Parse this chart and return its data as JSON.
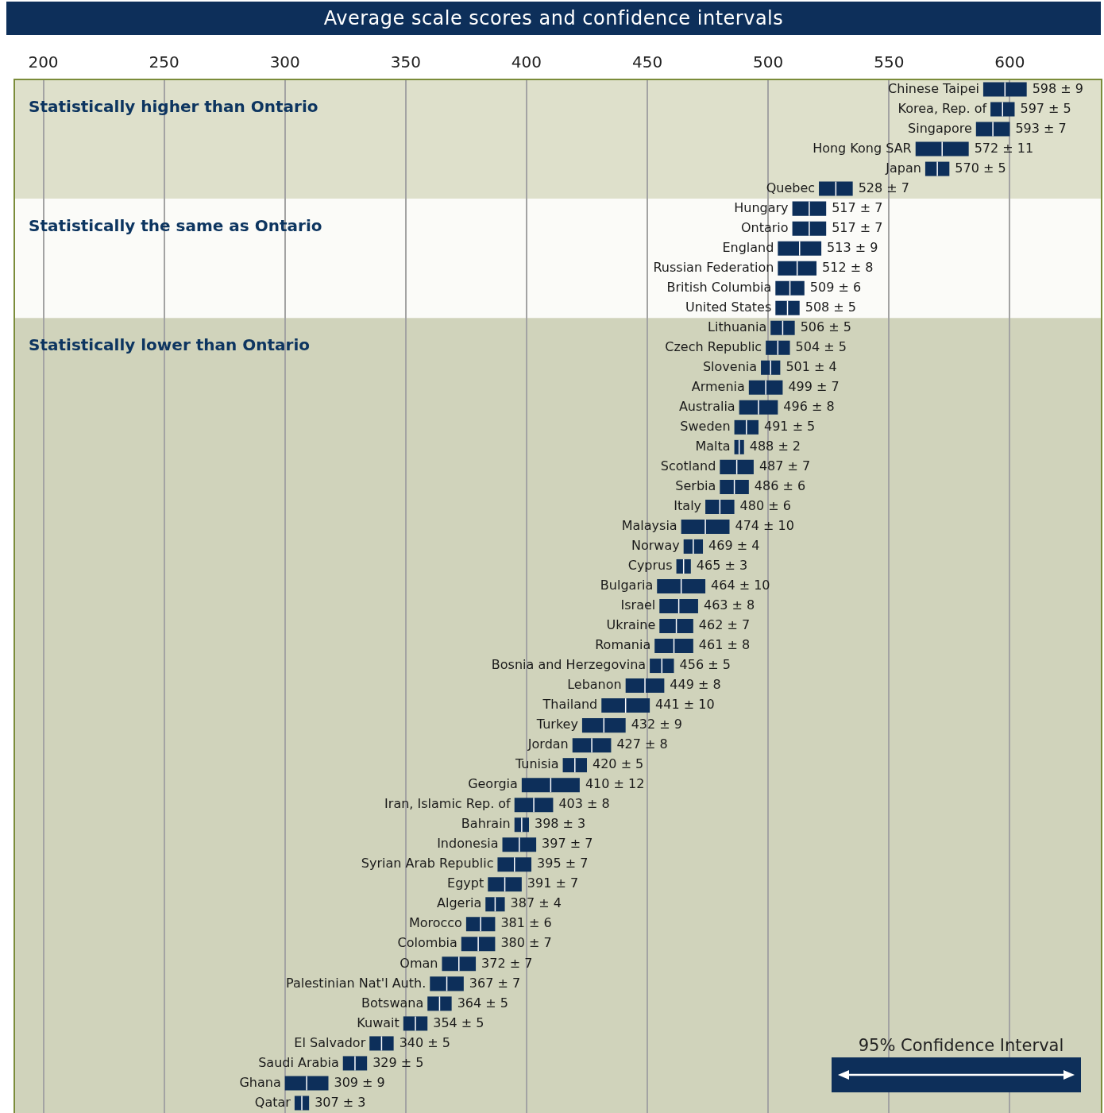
{
  "chart_data": {
    "type": "box",
    "orientation": "horizontal",
    "title": "Average scale scores and confidence intervals",
    "categories": [
      "Chinese Taipei",
      "Korea, Rep. of",
      "Singapore",
      "Hong Kong SAR",
      "Japan",
      "Quebec",
      "Hungary",
      "Ontario",
      "England",
      "Russian Federation",
      "British Columbia",
      "United States",
      "Lithuania",
      "Czech Republic",
      "Slovenia",
      "Armenia",
      "Australia",
      "Sweden",
      "Malta",
      "Scotland",
      "Serbia",
      "Italy",
      "Malaysia",
      "Norway",
      "Cyprus",
      "Bulgaria",
      "Israel",
      "Ukraine",
      "Romania",
      "Bosnia and Herzegovina",
      "Lebanon",
      "Thailand",
      "Turkey",
      "Jordan",
      "Tunisia",
      "Georgia",
      "Iran, Islamic Rep. of",
      "Bahrain",
      "Indonesia",
      "Syrian Arab Republic",
      "Egypt",
      "Algeria",
      "Morocco",
      "Colombia",
      "Oman",
      "Palestinian Nat'l Auth.",
      "Botswana",
      "Kuwait",
      "El Salvador",
      "Saudi Arabia",
      "Ghana",
      "Qatar"
    ],
    "boxes": [
      {
        "low": 589,
        "q1": 589,
        "median": 598,
        "q3": 607,
        "high": 607
      },
      {
        "low": 592,
        "q1": 592,
        "median": 597,
        "q3": 602,
        "high": 602
      },
      {
        "low": 586,
        "q1": 586,
        "median": 593,
        "q3": 600,
        "high": 600
      },
      {
        "low": 561,
        "q1": 561,
        "median": 572,
        "q3": 583,
        "high": 583
      },
      {
        "low": 565,
        "q1": 565,
        "median": 570,
        "q3": 575,
        "high": 575
      },
      {
        "low": 521,
        "q1": 521,
        "median": 528,
        "q3": 535,
        "high": 535
      },
      {
        "low": 510,
        "q1": 510,
        "median": 517,
        "q3": 524,
        "high": 524
      },
      {
        "low": 510,
        "q1": 510,
        "median": 517,
        "q3": 524,
        "high": 524
      },
      {
        "low": 504,
        "q1": 504,
        "median": 513,
        "q3": 522,
        "high": 522
      },
      {
        "low": 504,
        "q1": 504,
        "median": 512,
        "q3": 520,
        "high": 520
      },
      {
        "low": 503,
        "q1": 503,
        "median": 509,
        "q3": 515,
        "high": 515
      },
      {
        "low": 503,
        "q1": 503,
        "median": 508,
        "q3": 513,
        "high": 513
      },
      {
        "low": 501,
        "q1": 501,
        "median": 506,
        "q3": 511,
        "high": 511
      },
      {
        "low": 499,
        "q1": 499,
        "median": 504,
        "q3": 509,
        "high": 509
      },
      {
        "low": 497,
        "q1": 497,
        "median": 501,
        "q3": 505,
        "high": 505
      },
      {
        "low": 492,
        "q1": 492,
        "median": 499,
        "q3": 506,
        "high": 506
      },
      {
        "low": 488,
        "q1": 488,
        "median": 496,
        "q3": 504,
        "high": 504
      },
      {
        "low": 486,
        "q1": 486,
        "median": 491,
        "q3": 496,
        "high": 496
      },
      {
        "low": 486,
        "q1": 486,
        "median": 488,
        "q3": 490,
        "high": 490
      },
      {
        "low": 480,
        "q1": 480,
        "median": 487,
        "q3": 494,
        "high": 494
      },
      {
        "low": 480,
        "q1": 480,
        "median": 486,
        "q3": 492,
        "high": 492
      },
      {
        "low": 474,
        "q1": 474,
        "median": 480,
        "q3": 486,
        "high": 486
      },
      {
        "low": 464,
        "q1": 464,
        "median": 474,
        "q3": 484,
        "high": 484
      },
      {
        "low": 465,
        "q1": 465,
        "median": 469,
        "q3": 473,
        "high": 473
      },
      {
        "low": 462,
        "q1": 462,
        "median": 465,
        "q3": 468,
        "high": 468
      },
      {
        "low": 454,
        "q1": 454,
        "median": 464,
        "q3": 474,
        "high": 474
      },
      {
        "low": 455,
        "q1": 455,
        "median": 463,
        "q3": 471,
        "high": 471
      },
      {
        "low": 455,
        "q1": 455,
        "median": 462,
        "q3": 469,
        "high": 469
      },
      {
        "low": 453,
        "q1": 453,
        "median": 461,
        "q3": 469,
        "high": 469
      },
      {
        "low": 451,
        "q1": 451,
        "median": 456,
        "q3": 461,
        "high": 461
      },
      {
        "low": 441,
        "q1": 441,
        "median": 449,
        "q3": 457,
        "high": 457
      },
      {
        "low": 431,
        "q1": 431,
        "median": 441,
        "q3": 451,
        "high": 451
      },
      {
        "low": 423,
        "q1": 423,
        "median": 432,
        "q3": 441,
        "high": 441
      },
      {
        "low": 419,
        "q1": 419,
        "median": 427,
        "q3": 435,
        "high": 435
      },
      {
        "low": 415,
        "q1": 415,
        "median": 420,
        "q3": 425,
        "high": 425
      },
      {
        "low": 398,
        "q1": 398,
        "median": 410,
        "q3": 422,
        "high": 422
      },
      {
        "low": 395,
        "q1": 395,
        "median": 403,
        "q3": 411,
        "high": 411
      },
      {
        "low": 395,
        "q1": 395,
        "median": 398,
        "q3": 401,
        "high": 401
      },
      {
        "low": 390,
        "q1": 390,
        "median": 397,
        "q3": 404,
        "high": 404
      },
      {
        "low": 388,
        "q1": 388,
        "median": 395,
        "q3": 402,
        "high": 402
      },
      {
        "low": 384,
        "q1": 384,
        "median": 391,
        "q3": 398,
        "high": 398
      },
      {
        "low": 383,
        "q1": 383,
        "median": 387,
        "q3": 391,
        "high": 391
      },
      {
        "low": 375,
        "q1": 375,
        "median": 381,
        "q3": 387,
        "high": 387
      },
      {
        "low": 373,
        "q1": 373,
        "median": 380,
        "q3": 387,
        "high": 387
      },
      {
        "low": 365,
        "q1": 365,
        "median": 372,
        "q3": 379,
        "high": 379
      },
      {
        "low": 360,
        "q1": 360,
        "median": 367,
        "q3": 374,
        "high": 374
      },
      {
        "low": 359,
        "q1": 359,
        "median": 364,
        "q3": 369,
        "high": 369
      },
      {
        "low": 349,
        "q1": 349,
        "median": 354,
        "q3": 359,
        "high": 359
      },
      {
        "low": 335,
        "q1": 335,
        "median": 340,
        "q3": 345,
        "high": 345
      },
      {
        "low": 324,
        "q1": 324,
        "median": 329,
        "q3": 334,
        "high": 334
      },
      {
        "low": 300,
        "q1": 300,
        "median": 309,
        "q3": 318,
        "high": 318
      },
      {
        "low": 304,
        "q1": 304,
        "median": 307,
        "q3": 310,
        "high": 310
      }
    ],
    "value_labels": [
      "598 ± 9",
      "597 ± 5",
      "593 ± 7",
      "572 ± 11",
      "570 ± 5",
      "528 ± 7",
      "517 ± 7",
      "517 ± 7",
      "513 ± 9",
      "512 ± 8",
      "509 ± 6",
      "508 ± 5",
      "506 ± 5",
      "504 ± 5",
      "501 ± 4",
      "499 ± 7",
      "496 ± 8",
      "491 ± 5",
      "488 ± 2",
      "487 ± 7",
      "486 ± 6",
      "480 ± 6",
      "474 ± 10",
      "469 ± 4",
      "465 ± 3",
      "464 ± 10",
      "463 ± 8",
      "462 ± 7",
      "461 ± 8",
      "456 ± 5",
      "449 ± 8",
      "441 ± 10",
      "432 ± 9",
      "427 ± 8",
      "420 ± 5",
      "410 ± 12",
      "403 ± 8",
      "398 ± 3",
      "397 ± 7",
      "395 ± 7",
      "391 ± 7",
      "387 ± 4",
      "381 ± 6",
      "380 ± 7",
      "372 ± 7",
      "367 ± 7",
      "364 ± 5",
      "354 ± 5",
      "340 ± 5",
      "329 ± 5",
      "309 ± 9",
      "307 ± 3"
    ],
    "color": "#0d2f5a",
    "xlim": [
      188,
      638
    ],
    "xticks": [
      200,
      250,
      300,
      350,
      400,
      450,
      500,
      550,
      600
    ],
    "grid": "x",
    "legend": false,
    "bands": [
      {
        "axis": "y",
        "from": "Chinese Taipei",
        "to": "Quebec",
        "label": "Statistically higher than Ontario",
        "color": "#dee0cb"
      },
      {
        "axis": "y",
        "from": "Hungary",
        "to": "United States",
        "label": "Statistically the same as Ontario",
        "color": "#fbfbf8"
      },
      {
        "axis": "y",
        "from": "Lithuania",
        "to": "Qatar",
        "label": "Statistically lower than Ontario",
        "color": "#d0d3bb"
      }
    ],
    "annotations": [
      "95% Confidence Interval"
    ]
  }
}
